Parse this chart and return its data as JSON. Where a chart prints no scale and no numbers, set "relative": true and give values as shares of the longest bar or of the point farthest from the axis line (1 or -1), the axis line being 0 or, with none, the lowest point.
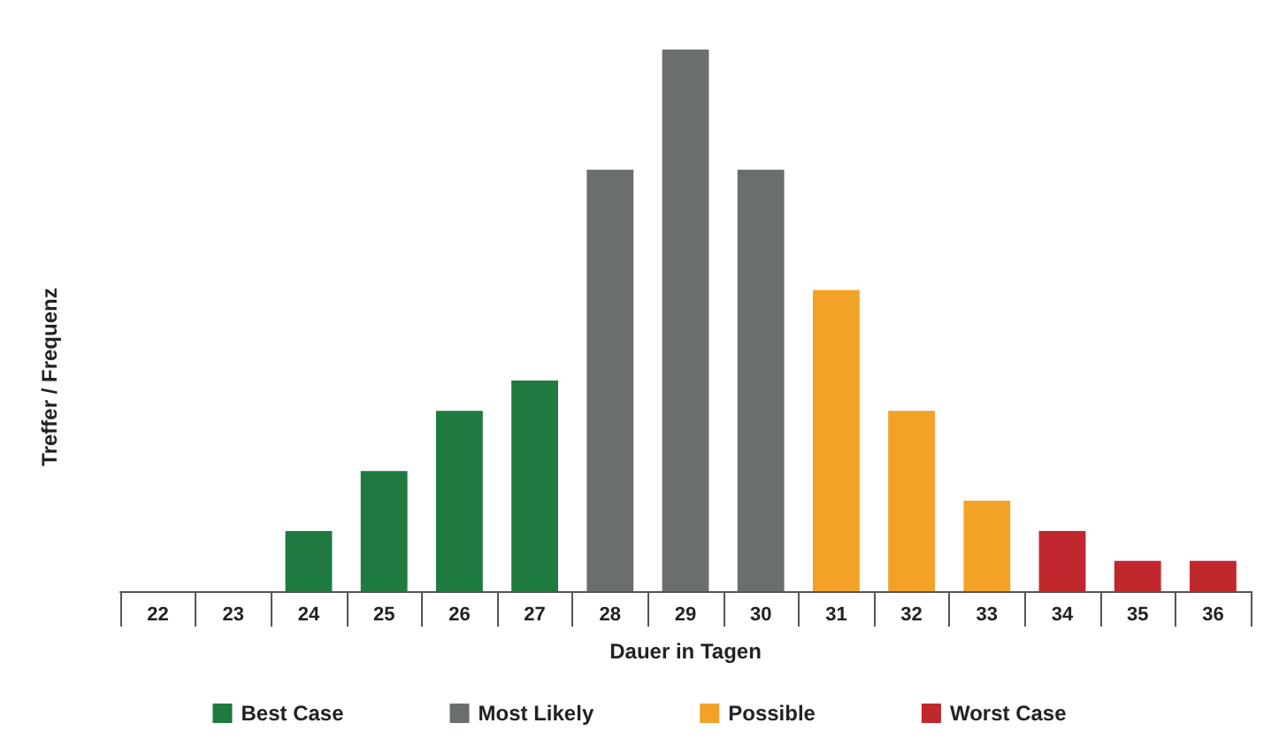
{
  "chart_data": {
    "type": "bar",
    "relative": true,
    "stacked": true,
    "xlabel": "Dauer in Tagen",
    "ylabel": "Treffer / Frequenz",
    "legend": "bottom",
    "grid": false,
    "categories": [
      "22",
      "23",
      "24",
      "25",
      "26",
      "27",
      "28",
      "29",
      "30",
      "31",
      "32",
      "33",
      "34",
      "35",
      "36"
    ],
    "series": [
      {
        "name": "Best Case",
        "color": "#1e7a3e",
        "values": [
          0,
          0,
          0.111,
          0.222,
          0.333,
          0.389,
          null,
          null,
          null,
          null,
          null,
          null,
          null,
          null,
          null
        ]
      },
      {
        "name": "Most Likely",
        "color": "#6b6e6e",
        "values": [
          null,
          null,
          null,
          null,
          null,
          null,
          0.778,
          1,
          0.778,
          null,
          null,
          null,
          null,
          null,
          null
        ]
      },
      {
        "name": "Possible",
        "color": "#f2a227",
        "values": [
          null,
          null,
          null,
          null,
          null,
          null,
          null,
          null,
          null,
          0.556,
          0.333,
          0.167,
          null,
          null,
          null
        ]
      },
      {
        "name": "Worst Case",
        "color": "#c0282d",
        "values": [
          null,
          null,
          null,
          null,
          null,
          null,
          null,
          null,
          null,
          null,
          null,
          null,
          0.111,
          0.056,
          0.056
        ]
      }
    ]
  }
}
